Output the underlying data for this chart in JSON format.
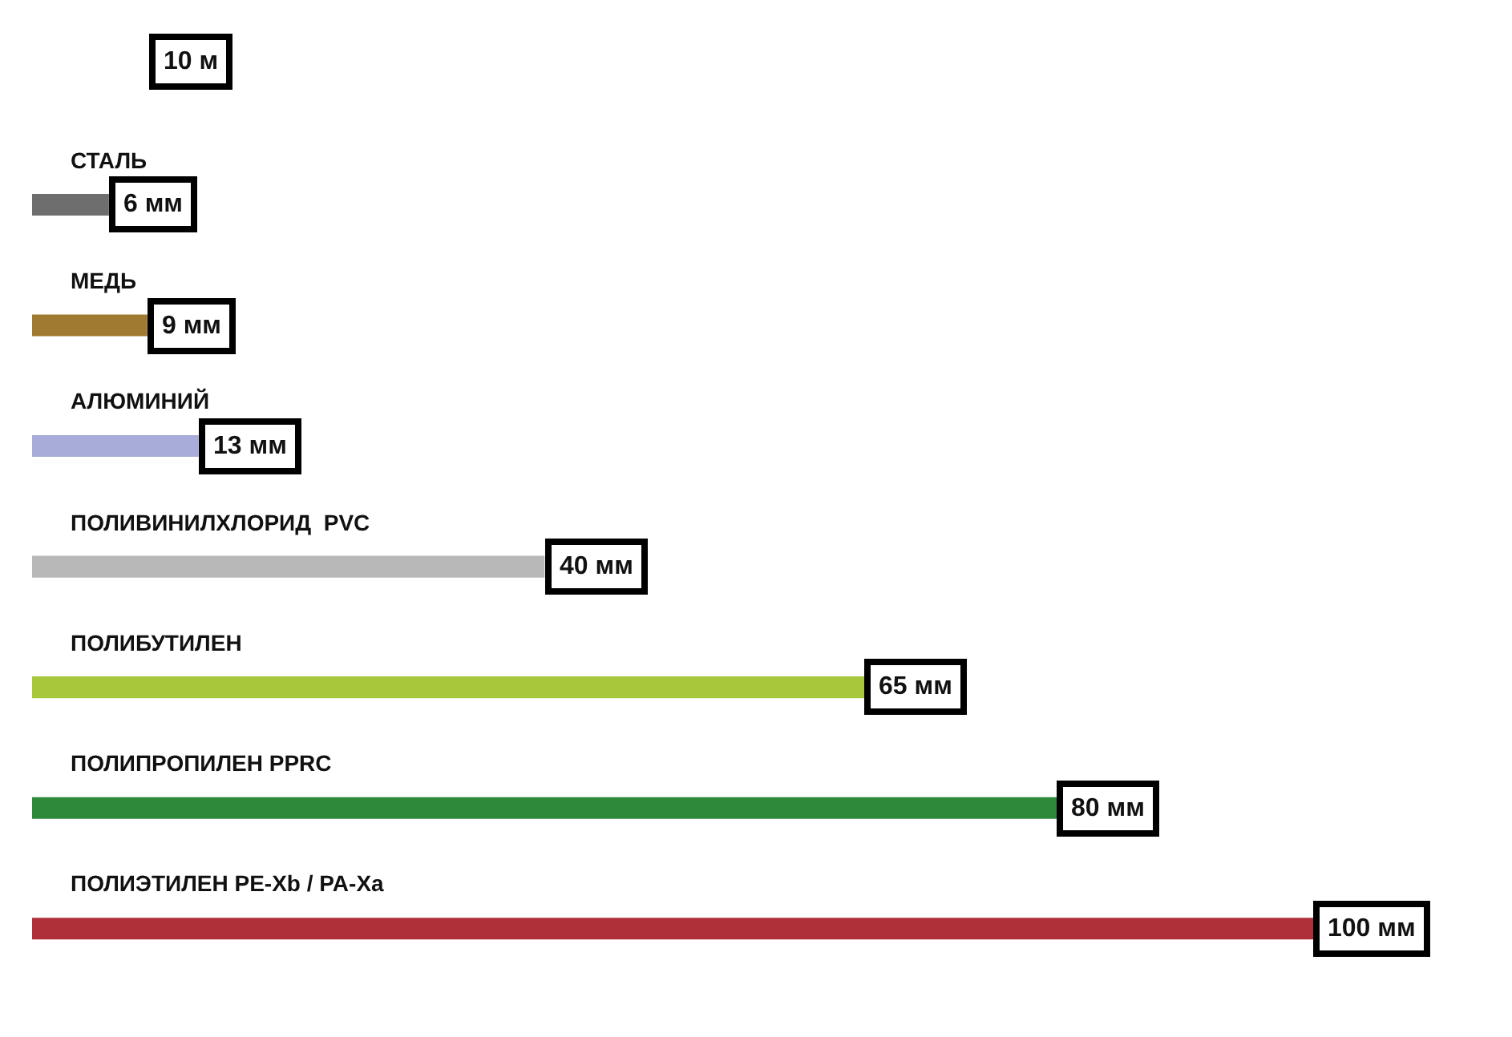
{
  "chart_data": {
    "type": "bar",
    "orientation": "horizontal",
    "categories": [
      "СТАЛЬ",
      "МЕДЬ",
      "АЛЮМИНИЙ",
      "ПОЛИВИНИЛХЛОРИД  PVC",
      "ПОЛИБУТИЛЕН",
      "ПОЛИПРОПИЛЕН PPRC",
      "ПОЛИЭТИЛЕН PE-Xb / PA-Xa"
    ],
    "values": [
      6,
      9,
      13,
      40,
      65,
      80,
      100
    ],
    "colors": [
      "#6e6e6e",
      "#a07a30",
      "#a8acd8",
      "#b8b8b8",
      "#a8c83c",
      "#2e8a3a",
      "#b0303a"
    ],
    "value_labels": [
      "6 мм",
      "9 мм",
      "13 мм",
      "40 мм",
      "65 мм",
      "80 мм",
      "100 мм"
    ],
    "annotations": [
      "10 м"
    ],
    "legend": false
  }
}
